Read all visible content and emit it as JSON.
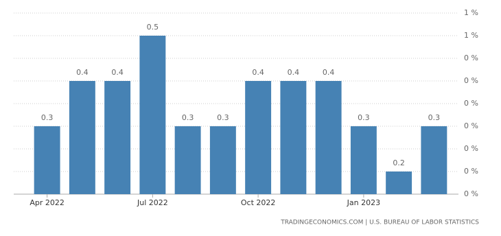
{
  "chart_data": {
    "type": "bar",
    "categories": [
      "Apr 2022",
      null,
      null,
      "Jul 2022",
      null,
      null,
      "Oct 2022",
      null,
      null,
      "Jan 2023",
      null,
      null
    ],
    "values": [
      0.3,
      0.4,
      0.4,
      0.5,
      0.3,
      0.3,
      0.4,
      0.4,
      0.4,
      0.3,
      0.2,
      0.3
    ],
    "color": "#4682b4",
    "ylim": [
      0.15,
      0.55
    ],
    "yticks": [
      {
        "value": 0.15,
        "label": "0 %"
      },
      {
        "value": 0.2,
        "label": "0 %"
      },
      {
        "value": 0.25,
        "label": "0 %"
      },
      {
        "value": 0.3,
        "label": "0 %"
      },
      {
        "value": 0.35,
        "label": "0 %"
      },
      {
        "value": 0.4,
        "label": "0 %"
      },
      {
        "value": 0.45,
        "label": "0 %"
      },
      {
        "value": 0.5,
        "label": "1 %"
      },
      {
        "value": 0.55,
        "label": "1 %"
      }
    ],
    "grid": true,
    "source": "TRADINGECONOMICS.COM | U.S. BUREAU OF LABOR STATISTICS"
  }
}
